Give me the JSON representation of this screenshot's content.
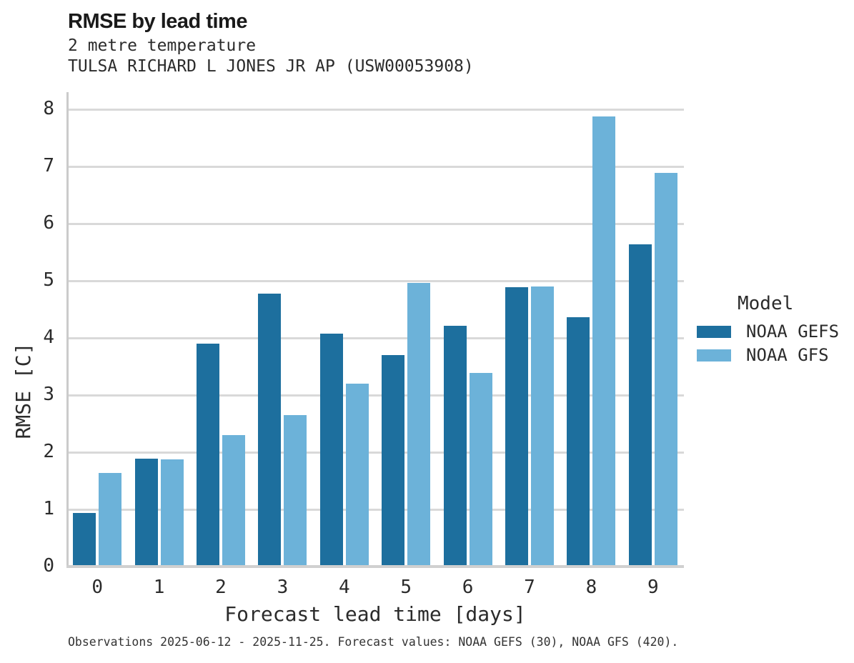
{
  "header": {
    "title": "RMSE by lead time",
    "subtitle1": "2 metre temperature",
    "subtitle2": "TULSA RICHARD L JONES JR AP (USW00053908)"
  },
  "legend": {
    "title": "Model",
    "entries": [
      {
        "label": "NOAA GEFS",
        "color": "#1d6f9e"
      },
      {
        "label": "NOAA GFS",
        "color": "#6cb2d9"
      }
    ]
  },
  "footer": {
    "caption": "Observations 2025-06-12 - 2025-11-25. Forecast values: NOAA GEFS (30), NOAA GFS (420)."
  },
  "chart_data": {
    "type": "bar",
    "title": "RMSE by lead time",
    "subtitle": [
      "2 metre temperature",
      "TULSA RICHARD L JONES JR AP (USW00053908)"
    ],
    "xlabel": "Forecast lead time [days]",
    "ylabel": "RMSE [C]",
    "categories": [
      "0",
      "1",
      "2",
      "3",
      "4",
      "5",
      "6",
      "7",
      "8",
      "9"
    ],
    "series": [
      {
        "name": "NOAA GEFS",
        "color": "#1d6f9e",
        "values": [
          0.94,
          1.89,
          3.9,
          4.78,
          4.08,
          3.7,
          4.21,
          4.89,
          4.36,
          5.64
        ]
      },
      {
        "name": "NOAA GFS",
        "color": "#6cb2d9",
        "values": [
          1.64,
          1.88,
          2.3,
          2.65,
          3.2,
          4.96,
          3.39,
          4.9,
          7.88,
          6.89
        ]
      }
    ],
    "ylim": [
      0,
      8.3
    ],
    "yticks": [
      0,
      1,
      2,
      3,
      4,
      5,
      6,
      7,
      8
    ],
    "grid": "horizontal",
    "legend_position": "right",
    "caption": "Observations 2025-06-12 - 2025-11-25. Forecast values: NOAA GEFS (30), NOAA GFS (420)."
  },
  "colors": {
    "background": "#ffffff",
    "grid": "#d9d9d9",
    "spine": "#cbcbcb",
    "baseline": "#d0d0d0",
    "text": "#2b2b2b",
    "title_text": "#1a1a1a",
    "caption_text": "#333333"
  }
}
